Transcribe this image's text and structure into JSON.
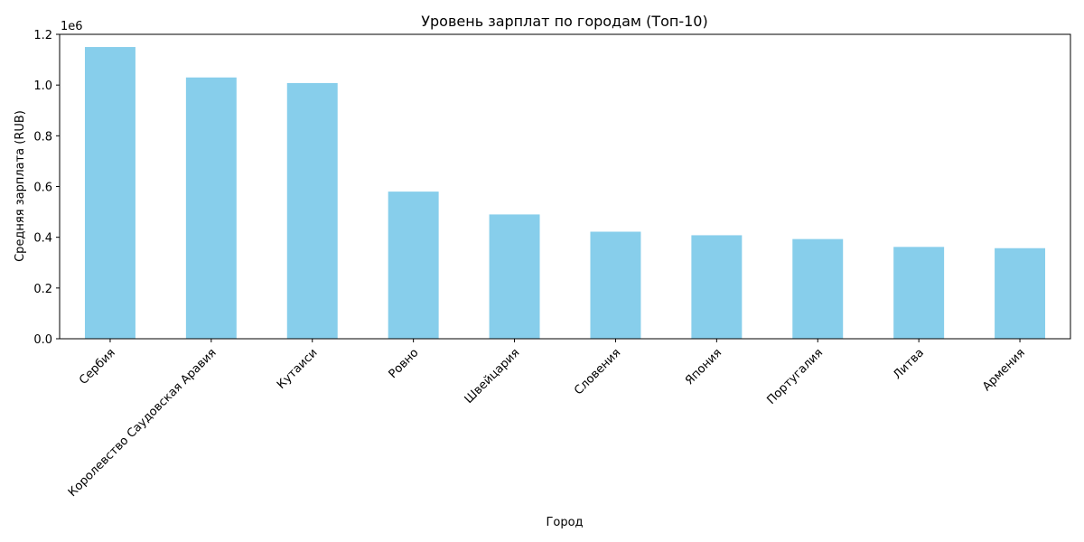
{
  "chart_data": {
    "type": "bar",
    "title": "Уровень зарплат по городам (Топ-10)",
    "xlabel": "Город",
    "ylabel": "Средняя зарплата (RUB)",
    "y_scale_label": "1e6",
    "categories": [
      "Сербия",
      "Королевство Саудовская Аравия",
      "Кутаиси",
      "Ровно",
      "Швейцария",
      "Словения",
      "Япония",
      "Португалия",
      "Литва",
      "Армения"
    ],
    "values": [
      1150000,
      1030000,
      1008000,
      580000,
      490000,
      422000,
      408000,
      393000,
      362000,
      357000
    ],
    "ylim": [
      0,
      1200000
    ],
    "yticks": [
      0,
      200000,
      400000,
      600000,
      800000,
      1000000,
      1200000
    ],
    "ytick_labels": [
      "0.0",
      "0.2",
      "0.4",
      "0.6",
      "0.8",
      "1.0",
      "1.2"
    ],
    "bar_color": "#87ceeb",
    "grid": false,
    "legend": "none",
    "xtick_rotation_deg": 45
  }
}
